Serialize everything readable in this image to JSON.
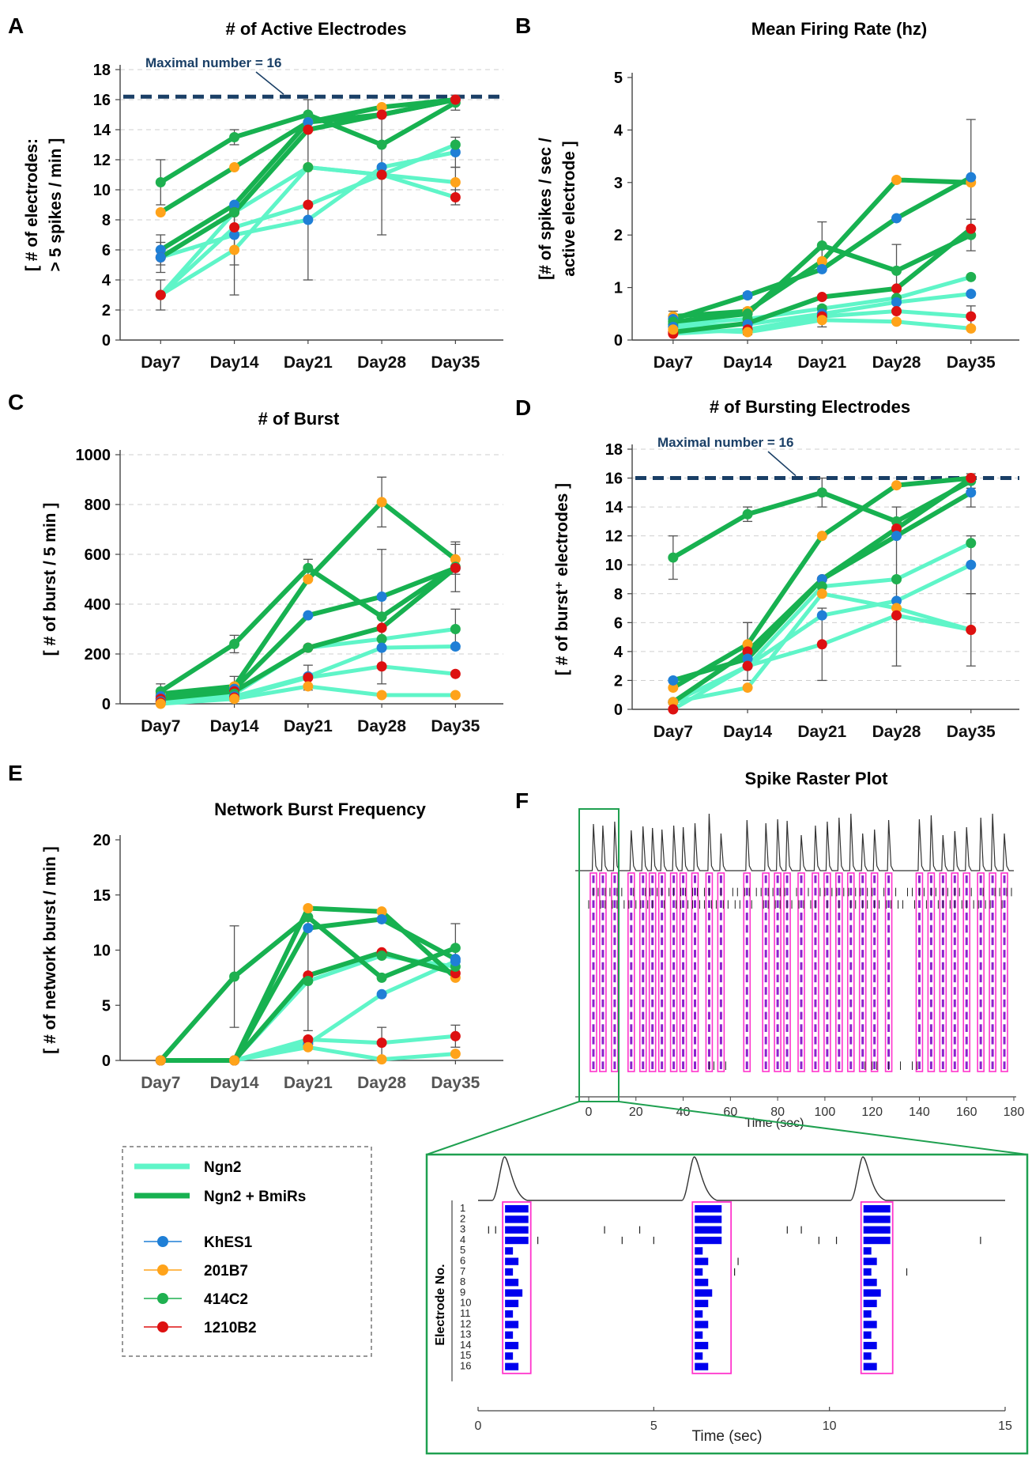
{
  "panel_letters": {
    "a": "A",
    "b": "B",
    "c": "C",
    "d": "D",
    "e": "E",
    "f": "F"
  },
  "legend": {
    "lines": [
      {
        "label": "Ngn2",
        "color": "#5ff5c8"
      },
      {
        "label": "Ngn2 + BmiRs",
        "color": "#17b150"
      }
    ],
    "lines_ids": [
      "ngn2",
      "bmirs"
    ],
    "markers": [
      {
        "label": "KhES1",
        "color": "#1f7fd6"
      },
      {
        "label": "201B7",
        "color": "#ffa31a"
      },
      {
        "label": "414C2",
        "color": "#1fb050"
      },
      {
        "label": "1210B2",
        "color": "#dd1111"
      }
    ]
  },
  "colors": {
    "ngn2": "#5ff5c8",
    "bmirs": "#17b150",
    "maxline": "#1a3f66",
    "raster_box": "#ff33cc",
    "raster_burst": "#8a22cc",
    "zoom_box": "#1fa050",
    "zoom_spike": "#0000ee"
  },
  "chart_data": [
    {
      "id": "A",
      "type": "line",
      "title": "# of Active Electrodes",
      "ylabel_lines": [
        "[ # of electrodes:",
        "> 5 spikes / min ]"
      ],
      "categories": [
        "Day7",
        "Day14",
        "Day21",
        "Day28",
        "Day35"
      ],
      "ylim": [
        0,
        18
      ],
      "yticks": [
        0,
        2,
        4,
        6,
        8,
        10,
        12,
        14,
        16,
        18
      ],
      "grid": true,
      "hline": {
        "value": 16.2,
        "label": "Maximal number = 16"
      },
      "series": [
        {
          "group": "bmirs",
          "cell": "414C2",
          "values": [
            10.5,
            13.5,
            15,
            13,
            15.8
          ],
          "err": [
            1.5,
            0.5,
            1,
            0,
            0.5
          ]
        },
        {
          "group": "bmirs",
          "cell": "201B7",
          "values": [
            8.5,
            11.5,
            14.5,
            15.5,
            16
          ],
          "err": [
            0,
            0,
            0,
            0,
            0
          ]
        },
        {
          "group": "bmirs",
          "cell": "KhES1",
          "values": [
            6,
            9,
            14.5,
            15,
            16
          ],
          "err": [
            1,
            0,
            0,
            0,
            0
          ]
        },
        {
          "group": "bmirs",
          "cell": "1210B2",
          "values": [
            5.5,
            8.5,
            14,
            15,
            16
          ],
          "err": [
            0,
            0,
            0,
            0,
            0
          ]
        },
        {
          "group": "ngn2",
          "cell": "KhES1",
          "values": [
            5.5,
            7,
            8,
            11.5,
            12.5
          ],
          "err": [
            1,
            2,
            0,
            0,
            1
          ]
        },
        {
          "group": "ngn2",
          "cell": "201B7",
          "values": [
            3,
            6,
            11.5,
            11,
            10.5
          ],
          "err": [
            1,
            3,
            0,
            0,
            1
          ]
        },
        {
          "group": "ngn2",
          "cell": "414C2",
          "values": [
            3,
            8.5,
            11.5,
            11,
            13
          ],
          "err": [
            0,
            0,
            0,
            0,
            0
          ]
        },
        {
          "group": "ngn2",
          "cell": "1210B2",
          "values": [
            3,
            7.5,
            9,
            11,
            9.5
          ],
          "err": [
            0,
            0,
            5,
            4,
            0.5
          ]
        }
      ]
    },
    {
      "id": "B",
      "type": "line",
      "title": "Mean Firing Rate (hz)",
      "ylabel_lines": [
        "[# of spikes / sec /",
        "active electrode ]"
      ],
      "categories": [
        "Day7",
        "Day14",
        "Day21",
        "Day28",
        "Day35"
      ],
      "ylim": [
        0,
        5
      ],
      "yticks": [
        0,
        1,
        2,
        3,
        4,
        5
      ],
      "grid": false,
      "series": [
        {
          "group": "bmirs",
          "cell": "201B7",
          "values": [
            0.45,
            0.55,
            1.5,
            3.05,
            3.0
          ],
          "err": [
            0,
            0,
            0,
            0,
            0
          ]
        },
        {
          "group": "bmirs",
          "cell": "KhES1",
          "values": [
            0.4,
            0.85,
            1.35,
            2.32,
            3.1
          ],
          "err": [
            0.15,
            0.05,
            0,
            0,
            1.1
          ]
        },
        {
          "group": "bmirs",
          "cell": "414C2",
          "values": [
            0.35,
            0.5,
            1.8,
            1.32,
            2.0
          ],
          "err": [
            0.1,
            0.1,
            0.45,
            0.5,
            0.3
          ]
        },
        {
          "group": "bmirs",
          "cell": "1210B2",
          "values": [
            0.15,
            0.32,
            0.82,
            0.98,
            2.12
          ],
          "err": [
            0,
            0,
            0,
            0,
            0
          ]
        },
        {
          "group": "ngn2",
          "cell": "414C2",
          "values": [
            0.3,
            0.4,
            0.6,
            0.8,
            1.2
          ],
          "err": [
            0,
            0,
            0,
            0,
            0
          ]
        },
        {
          "group": "ngn2",
          "cell": "KhES1",
          "values": [
            0.25,
            0.3,
            0.5,
            0.72,
            0.88
          ],
          "err": [
            0,
            0,
            0,
            0,
            0
          ]
        },
        {
          "group": "ngn2",
          "cell": "1210B2",
          "values": [
            0.12,
            0.2,
            0.45,
            0.55,
            0.45
          ],
          "err": [
            0,
            0,
            0.2,
            0,
            0.2
          ]
        },
        {
          "group": "ngn2",
          "cell": "201B7",
          "values": [
            0.2,
            0.15,
            0.38,
            0.35,
            0.22
          ],
          "err": [
            0,
            0.05,
            0,
            0,
            0
          ]
        }
      ]
    },
    {
      "id": "C",
      "type": "line",
      "title": "# of Burst",
      "ylabel_lines": [
        "[ # of burst / 5 min ]"
      ],
      "categories": [
        "Day7",
        "Day14",
        "Day21",
        "Day28",
        "Day35"
      ],
      "ylim": [
        0,
        1000
      ],
      "yticks": [
        0,
        200,
        400,
        600,
        800,
        1000
      ],
      "grid": true,
      "series": [
        {
          "group": "bmirs",
          "cell": "201B7",
          "values": [
            40,
            70,
            500,
            810,
            580
          ],
          "err": [
            0,
            0,
            0,
            100,
            60
          ]
        },
        {
          "group": "bmirs",
          "cell": "414C2",
          "values": [
            50,
            240,
            545,
            350,
            550
          ],
          "err": [
            30,
            35,
            35,
            270,
            100
          ]
        },
        {
          "group": "bmirs",
          "cell": "KhES1",
          "values": [
            30,
            60,
            355,
            430,
            545
          ],
          "err": [
            0,
            50,
            0,
            0,
            0
          ]
        },
        {
          "group": "bmirs",
          "cell": "1210B2",
          "values": [
            20,
            50,
            225,
            305,
            545
          ],
          "err": [
            0,
            0,
            0,
            0,
            0
          ]
        },
        {
          "group": "ngn2",
          "cell": "414C2",
          "values": [
            10,
            40,
            225,
            260,
            300
          ],
          "err": [
            0,
            0,
            0,
            0,
            80
          ]
        },
        {
          "group": "ngn2",
          "cell": "KhES1",
          "values": [
            10,
            30,
            110,
            225,
            230
          ],
          "err": [
            0,
            0,
            0,
            0,
            0
          ]
        },
        {
          "group": "ngn2",
          "cell": "1210B2",
          "values": [
            5,
            25,
            105,
            150,
            120
          ],
          "err": [
            0,
            0,
            50,
            0,
            0
          ]
        },
        {
          "group": "ngn2",
          "cell": "201B7",
          "values": [
            0,
            20,
            70,
            35,
            35
          ],
          "err": [
            0,
            0,
            0,
            0,
            0
          ]
        }
      ]
    },
    {
      "id": "D",
      "type": "line",
      "title": "# of Bursting Electrodes",
      "ylabel_lines": [
        "[ # of burst⁺ electrodes ]"
      ],
      "categories": [
        "Day7",
        "Day14",
        "Day21",
        "Day28",
        "Day35"
      ],
      "ylim": [
        0,
        18
      ],
      "yticks": [
        0,
        2,
        4,
        6,
        8,
        10,
        12,
        14,
        16,
        18
      ],
      "grid": true,
      "hline": {
        "value": 16,
        "label": "Maximal number = 16"
      },
      "series": [
        {
          "group": "bmirs",
          "cell": "414C2",
          "values": [
            10.5,
            13.5,
            15,
            13,
            15.8
          ],
          "err": [
            1.5,
            0.5,
            1,
            1,
            0.5
          ]
        },
        {
          "group": "bmirs",
          "cell": "201B7",
          "values": [
            1.5,
            4.5,
            12,
            15.5,
            16
          ],
          "err": [
            0,
            1.5,
            0,
            0,
            0
          ]
        },
        {
          "group": "bmirs",
          "cell": "1210B2",
          "values": [
            0.5,
            4,
            9,
            12.5,
            16
          ],
          "err": [
            0,
            2,
            0,
            0,
            0
          ]
        },
        {
          "group": "bmirs",
          "cell": "KhES1",
          "values": [
            2,
            3.5,
            9,
            12,
            15
          ],
          "err": [
            0,
            0,
            0,
            0,
            1
          ]
        },
        {
          "group": "ngn2",
          "cell": "414C2",
          "values": [
            0.5,
            3,
            8.5,
            9,
            11.5
          ],
          "err": [
            0,
            0,
            0,
            0,
            0
          ]
        },
        {
          "group": "ngn2",
          "cell": "KhES1",
          "values": [
            0.5,
            3,
            6.5,
            7.5,
            10
          ],
          "err": [
            0,
            0,
            0,
            4.5,
            2
          ]
        },
        {
          "group": "ngn2",
          "cell": "201B7",
          "values": [
            0.5,
            1.5,
            8,
            7,
            5.5
          ],
          "err": [
            0,
            0,
            0,
            0,
            2.5
          ]
        },
        {
          "group": "ngn2",
          "cell": "1210B2",
          "values": [
            0,
            3,
            4.5,
            6.5,
            5.5
          ],
          "err": [
            0,
            0,
            2.5,
            0,
            0
          ]
        }
      ]
    },
    {
      "id": "E",
      "type": "line",
      "title": "Network Burst Frequency",
      "ylabel_lines": [
        "[ # of network burst / min ]"
      ],
      "categories": [
        "Day7",
        "Day14",
        "Day21",
        "Day28",
        "Day35"
      ],
      "ylim": [
        0,
        20
      ],
      "yticks": [
        0,
        5,
        10,
        15,
        20
      ],
      "grid": false,
      "series": [
        {
          "group": "bmirs",
          "cell": "414C2",
          "values": [
            0,
            7.6,
            13,
            7.5,
            10.2
          ],
          "err": [
            0,
            4.6,
            0,
            0,
            2.2
          ]
        },
        {
          "group": "bmirs",
          "cell": "201B7",
          "values": [
            0,
            0,
            13.8,
            13.5,
            7.5
          ],
          "err": [
            0,
            0,
            0,
            0,
            0
          ]
        },
        {
          "group": "bmirs",
          "cell": "KhES1",
          "values": [
            0,
            0,
            12,
            12.8,
            9.2
          ],
          "err": [
            0,
            0,
            0,
            0,
            0
          ]
        },
        {
          "group": "bmirs",
          "cell": "1210B2",
          "values": [
            0,
            0,
            7.7,
            9.8,
            7.9
          ],
          "err": [
            0,
            0,
            5,
            0,
            0
          ]
        },
        {
          "group": "ngn2",
          "cell": "414C2",
          "values": [
            0,
            0,
            7.2,
            9.5,
            8.5
          ],
          "err": [
            0,
            0,
            0,
            0,
            0
          ]
        },
        {
          "group": "ngn2",
          "cell": "KhES1",
          "values": [
            0,
            0,
            1.5,
            6,
            9
          ],
          "err": [
            0,
            0,
            0,
            0,
            0
          ]
        },
        {
          "group": "ngn2",
          "cell": "1210B2",
          "values": [
            0,
            0,
            1.9,
            1.6,
            2.2
          ],
          "err": [
            0,
            0,
            0,
            1.4,
            1
          ]
        },
        {
          "group": "ngn2",
          "cell": "201B7",
          "values": [
            0,
            0,
            1.2,
            0.1,
            0.6
          ],
          "err": [
            0,
            0,
            0,
            0,
            0
          ]
        }
      ]
    },
    {
      "id": "F",
      "type": "raster",
      "title": "Spike Raster Plot",
      "xlabel": "Time (sec)",
      "xlim": [
        0,
        180
      ],
      "xticks": [
        0,
        20,
        40,
        60,
        80,
        100,
        120,
        140,
        160,
        180
      ],
      "electrodes": 16,
      "burst_times": [
        2,
        6,
        11,
        18,
        23,
        27,
        31,
        36,
        40,
        45,
        51,
        56,
        67,
        75,
        80,
        84,
        90,
        96,
        101,
        106,
        111,
        116,
        121,
        127,
        140,
        145,
        150,
        155,
        160,
        166,
        171,
        176
      ],
      "zoom": {
        "xlabel": "Time (sec)",
        "ylabel": "Electrode No.",
        "xlim": [
          0,
          15
        ],
        "xticks": [
          0,
          5,
          10,
          15
        ],
        "electrode_labels": [
          "1",
          "2",
          "3",
          "4",
          "5",
          "6",
          "7",
          "8",
          "9",
          "10",
          "11",
          "12",
          "13",
          "14",
          "15",
          "16"
        ],
        "bursts": [
          [
            0.7,
            1.5
          ],
          [
            6.1,
            7.2
          ],
          [
            10.9,
            11.8
          ]
        ]
      }
    }
  ]
}
